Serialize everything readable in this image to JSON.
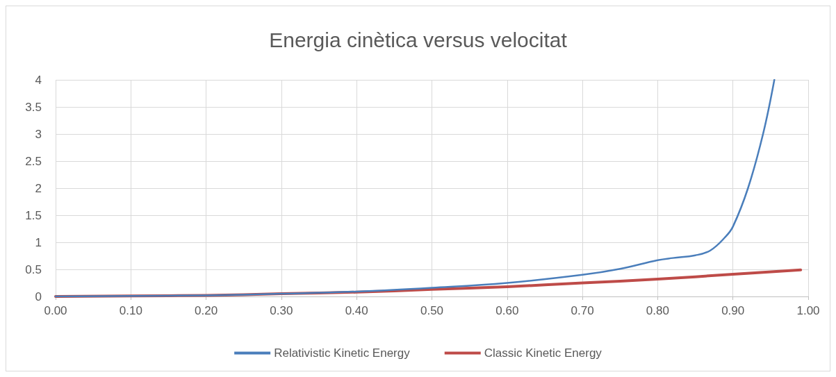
{
  "chart_data": {
    "type": "line",
    "title": "Energia cinètica versus velocitat",
    "series": [
      {
        "name": "Relativistic Kinetic Energy",
        "color": "#4a7ebb",
        "x": [
          0,
          0.1,
          0.2,
          0.3,
          0.4,
          0.5,
          0.6,
          0.7,
          0.75,
          0.8,
          0.82,
          0.85,
          0.87,
          0.89,
          0.9,
          0.92,
          0.94,
          0.955
        ],
        "values": [
          0,
          0.01,
          0.02,
          0.05,
          0.09,
          0.16,
          0.25,
          0.4,
          0.51,
          0.67,
          0.71,
          0.76,
          0.85,
          1.1,
          1.29,
          2.0,
          3.0,
          4.0
        ]
      },
      {
        "name": "Classic Kinetic Energy",
        "color": "#be4b48",
        "x": [
          0,
          0.1,
          0.2,
          0.3,
          0.4,
          0.5,
          0.6,
          0.7,
          0.8,
          0.9,
          0.99
        ],
        "values": [
          0,
          0.01,
          0.02,
          0.05,
          0.08,
          0.13,
          0.18,
          0.25,
          0.32,
          0.41,
          0.49
        ]
      }
    ],
    "xlim": [
      0,
      1
    ],
    "xticks": [
      {
        "value": 0,
        "label": "0.00"
      },
      {
        "value": 0.1,
        "label": "0.10"
      },
      {
        "value": 0.2,
        "label": "0.20"
      },
      {
        "value": 0.3,
        "label": "0.30"
      },
      {
        "value": 0.4,
        "label": "0.40"
      },
      {
        "value": 0.5,
        "label": "0.50"
      },
      {
        "value": 0.6,
        "label": "0.60"
      },
      {
        "value": 0.7,
        "label": "0.70"
      },
      {
        "value": 0.8,
        "label": "0.80"
      },
      {
        "value": 0.9,
        "label": "0.90"
      },
      {
        "value": 1,
        "label": "1.00"
      }
    ],
    "ylim": [
      0,
      4
    ],
    "yticks": [
      0,
      0.5,
      1,
      1.5,
      2,
      2.5,
      3,
      3.5,
      4
    ],
    "grid": true,
    "legend": "bottom",
    "marker": "none",
    "line_style": "solid"
  }
}
